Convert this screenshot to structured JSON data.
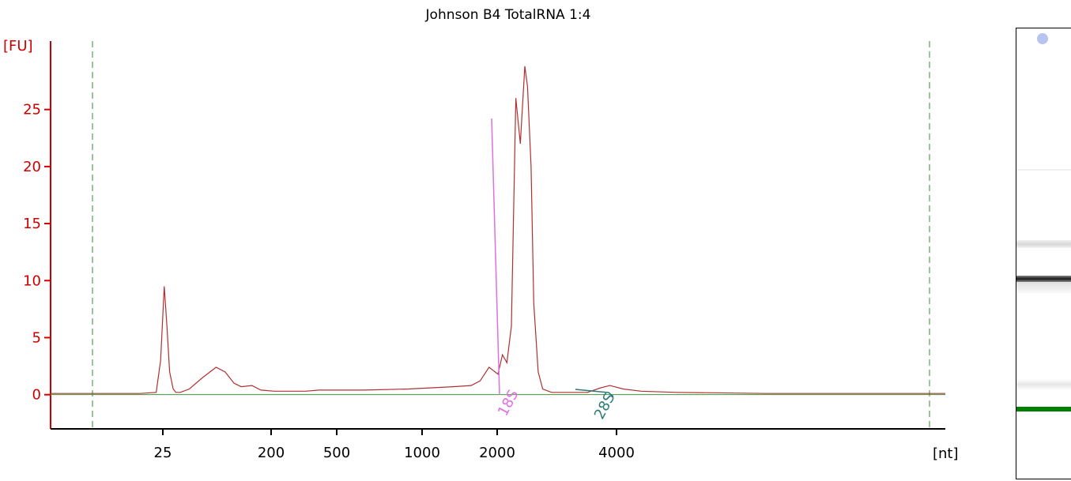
{
  "chart_data": {
    "type": "line",
    "title": "Johnson B4 TotalRNA 1:4",
    "ylabel": "[FU]",
    "xlabel": "[nt]",
    "ylim": [
      -3,
      31
    ],
    "y_ticks": [
      0,
      5,
      10,
      15,
      20,
      25
    ],
    "x_ticks": [
      "25",
      "200",
      "500",
      "1000",
      "2000",
      "4000"
    ],
    "grid": false,
    "series": [
      {
        "color": "#b03030",
        "x": [
          0.0,
          0.05,
          0.08,
          0.1,
          0.118,
          0.123,
          0.127,
          0.13,
          0.133,
          0.137,
          0.14,
          0.145,
          0.155,
          0.17,
          0.185,
          0.195,
          0.2,
          0.205,
          0.213,
          0.225,
          0.235,
          0.25,
          0.26,
          0.27,
          0.285,
          0.3,
          0.35,
          0.4,
          0.45,
          0.47,
          0.48,
          0.49,
          0.5,
          0.505,
          0.51,
          0.515,
          0.52,
          0.525,
          0.53,
          0.533,
          0.537,
          0.54,
          0.545,
          0.55,
          0.56,
          0.6,
          0.615,
          0.625,
          0.64,
          0.66,
          0.7,
          0.8,
          0.9,
          1.0
        ],
        "y": [
          0.1,
          0.1,
          0.1,
          0.1,
          0.2,
          3.0,
          9.5,
          6.0,
          2.0,
          0.5,
          0.2,
          0.2,
          0.5,
          1.5,
          2.4,
          2.0,
          1.5,
          1.0,
          0.7,
          0.8,
          0.4,
          0.3,
          0.3,
          0.3,
          0.3,
          0.4,
          0.4,
          0.5,
          0.7,
          0.8,
          1.2,
          2.4,
          1.8,
          3.5,
          2.8,
          6.0,
          26.0,
          22.0,
          28.8,
          27.0,
          20.0,
          8.0,
          2.0,
          0.5,
          0.2,
          0.2,
          0.6,
          0.8,
          0.5,
          0.3,
          0.2,
          0.1,
          0.1,
          0.1
        ]
      }
    ],
    "baseline": {
      "color": "#3a9a3a",
      "y": 0
    },
    "peak_markers": [
      {
        "label": "18S",
        "position": "2000",
        "color": "#e070e0"
      },
      {
        "label": "28S",
        "position": "4000",
        "color": "#2e7a7a"
      }
    ]
  },
  "gel": {
    "marker_color": "#008000",
    "dot_color": "#b8c4f0"
  }
}
